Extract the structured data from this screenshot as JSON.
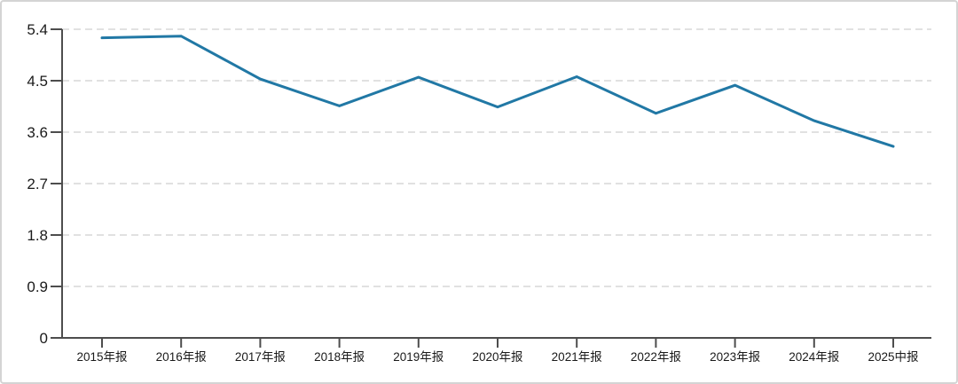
{
  "chart_data": {
    "type": "line",
    "title": "",
    "xlabel": "",
    "ylabel": "",
    "categories": [
      "2015年报",
      "2016年报",
      "2017年报",
      "2018年报",
      "2019年报",
      "2020年报",
      "2021年报",
      "2022年报",
      "2023年报",
      "2024年报",
      "2025中报"
    ],
    "values": [
      5.25,
      5.28,
      4.53,
      4.06,
      4.56,
      4.04,
      4.57,
      3.93,
      4.42,
      3.8,
      3.35
    ],
    "ylim": [
      0,
      5.4
    ],
    "yticks": [
      0,
      0.9,
      1.8,
      2.7,
      3.6,
      4.5,
      5.4
    ],
    "ytick_labels": [
      "0",
      "0.9",
      "1.8",
      "2.7",
      "3.6",
      "4.5",
      "5.4"
    ],
    "grid": "horizontal-dashed",
    "legend": "none",
    "colors": {
      "line": "#2178a5",
      "axis": "#4d4d4d",
      "grid": "#d7d7d7",
      "tick_label": "#1a1a1a",
      "background": "#ffffff",
      "frame_border": "#d4d4d4"
    }
  }
}
